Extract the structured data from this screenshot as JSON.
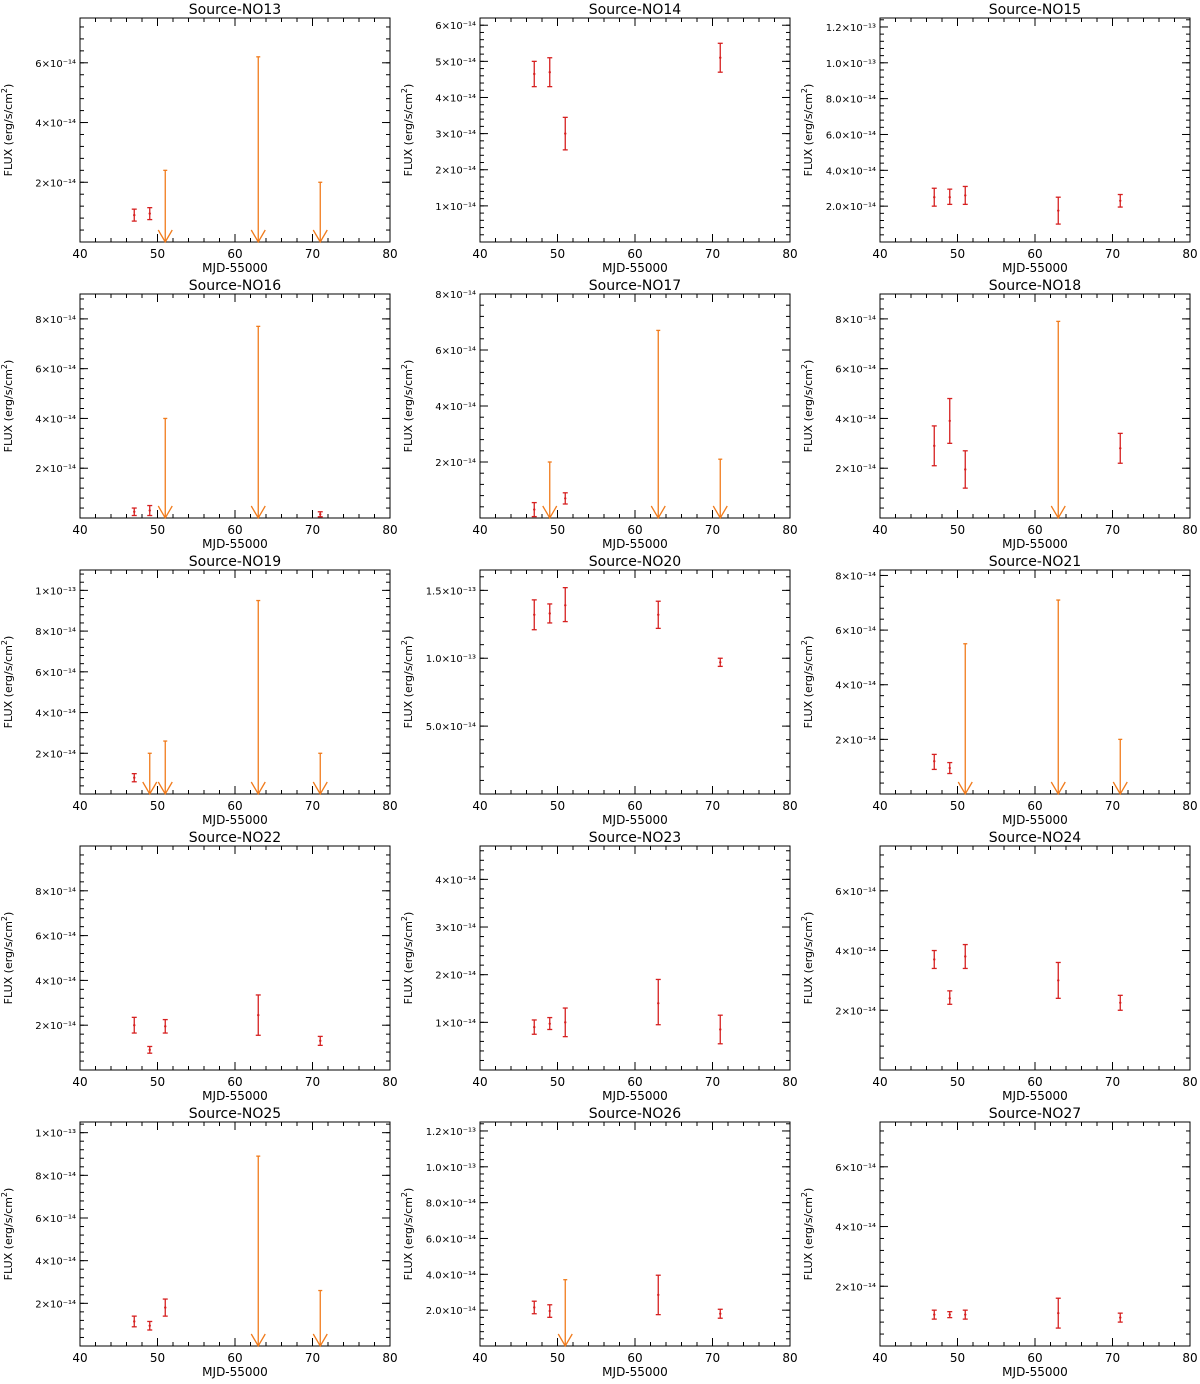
{
  "colors": {
    "detection": "#d62020",
    "upper_limit": "#f07b1c",
    "axes": "#000000"
  },
  "chart_data": [
    {
      "type": "scatter",
      "title": "Source-NO13",
      "xlabel": "MJD-55000",
      "ylabel": "FLUX (erg/s/cm",
      "xlim": [
        40,
        80
      ],
      "ylim": [
        0,
        7.5e-14
      ],
      "xticks": [
        40,
        50,
        60,
        70,
        80
      ],
      "yticks": [
        2e-14,
        4e-14,
        6e-14
      ],
      "ytick_labels": [
        "2×10⁻¹⁴",
        "4×10⁻¹⁴",
        "6×10⁻¹⁴"
      ],
      "detections": [
        {
          "x": 47,
          "y": 9e-15,
          "ylo": 7e-15,
          "yhi": 1.1e-14
        },
        {
          "x": 49,
          "y": 9.5e-15,
          "ylo": 7.5e-15,
          "yhi": 1.15e-14
        }
      ],
      "upper_limits": [
        {
          "x": 51,
          "y": 2.4e-14
        },
        {
          "x": 63,
          "y": 6.2e-14
        },
        {
          "x": 71,
          "y": 2e-14
        }
      ]
    },
    {
      "type": "scatter",
      "title": "Source-NO14",
      "xlabel": "MJD-55000",
      "ylabel": "FLUX (erg/s/cm",
      "xlim": [
        40,
        80
      ],
      "ylim": [
        0,
        6.2e-14
      ],
      "xticks": [
        40,
        50,
        60,
        70,
        80
      ],
      "yticks": [
        1e-14,
        2e-14,
        3e-14,
        4e-14,
        5e-14,
        6e-14
      ],
      "ytick_labels": [
        "1×10⁻¹⁴",
        "2×10⁻¹⁴",
        "3×10⁻¹⁴",
        "4×10⁻¹⁴",
        "5×10⁻¹⁴",
        "6×10⁻¹⁴"
      ],
      "detections": [
        {
          "x": 47,
          "y": 4.65e-14,
          "ylo": 4.3e-14,
          "yhi": 5e-14
        },
        {
          "x": 49,
          "y": 4.7e-14,
          "ylo": 4.3e-14,
          "yhi": 5.1e-14
        },
        {
          "x": 51,
          "y": 3e-14,
          "ylo": 2.55e-14,
          "yhi": 3.45e-14
        },
        {
          "x": 71,
          "y": 5.1e-14,
          "ylo": 4.7e-14,
          "yhi": 5.5e-14
        }
      ],
      "upper_limits": []
    },
    {
      "type": "scatter",
      "title": "Source-NO15",
      "xlabel": "MJD-55000",
      "ylabel": "FLUX (erg/s/cm",
      "xlim": [
        40,
        80
      ],
      "ylim": [
        0,
        1.25e-13
      ],
      "xticks": [
        40,
        50,
        60,
        70,
        80
      ],
      "yticks": [
        2e-14,
        4e-14,
        6e-14,
        8e-14,
        1e-13,
        1.2e-13
      ],
      "ytick_labels": [
        "2.0×10⁻¹⁴",
        "4.0×10⁻¹⁴",
        "6.0×10⁻¹⁴",
        "8.0×10⁻¹⁴",
        "1.0×10⁻¹³",
        "1.2×10⁻¹³"
      ],
      "detections": [
        {
          "x": 47,
          "y": 2.5e-14,
          "ylo": 2e-14,
          "yhi": 3e-14
        },
        {
          "x": 49,
          "y": 2.5e-14,
          "ylo": 2.1e-14,
          "yhi": 2.95e-14
        },
        {
          "x": 51,
          "y": 2.6e-14,
          "ylo": 2.1e-14,
          "yhi": 3.1e-14
        },
        {
          "x": 63,
          "y": 1.75e-14,
          "ylo": 1e-14,
          "yhi": 2.5e-14
        },
        {
          "x": 71,
          "y": 2.3e-14,
          "ylo": 1.95e-14,
          "yhi": 2.65e-14
        }
      ],
      "upper_limits": []
    },
    {
      "type": "scatter",
      "title": "Source-NO16",
      "xlabel": "MJD-55000",
      "ylabel": "FLUX (erg/s/cm",
      "xlim": [
        40,
        80
      ],
      "ylim": [
        0,
        9e-14
      ],
      "xticks": [
        40,
        50,
        60,
        70,
        80
      ],
      "yticks": [
        2e-14,
        4e-14,
        6e-14,
        8e-14
      ],
      "ytick_labels": [
        "2×10⁻¹⁴",
        "4×10⁻¹⁴",
        "6×10⁻¹⁴",
        "8×10⁻¹⁴"
      ],
      "detections": [
        {
          "x": 47,
          "y": 2.5e-15,
          "ylo": 1e-15,
          "yhi": 4e-15
        },
        {
          "x": 49,
          "y": 3e-15,
          "ylo": 1e-15,
          "yhi": 5e-15
        },
        {
          "x": 71,
          "y": 1.5e-15,
          "ylo": 5e-16,
          "yhi": 2.5e-15
        }
      ],
      "upper_limits": [
        {
          "x": 51,
          "y": 4e-14
        },
        {
          "x": 63,
          "y": 7.7e-14
        }
      ]
    },
    {
      "type": "scatter",
      "title": "Source-NO17",
      "xlabel": "MJD-55000",
      "ylabel": "FLUX (erg/s/cm",
      "xlim": [
        40,
        80
      ],
      "ylim": [
        0,
        8e-14
      ],
      "xticks": [
        40,
        50,
        60,
        70,
        80
      ],
      "yticks": [
        2e-14,
        4e-14,
        6e-14,
        8e-14
      ],
      "ytick_labels": [
        "2×10⁻¹⁴",
        "4×10⁻¹⁴",
        "6×10⁻¹⁴",
        "8×10⁻¹⁴"
      ],
      "detections": [
        {
          "x": 47,
          "y": 3e-15,
          "ylo": 5e-16,
          "yhi": 5.5e-15
        },
        {
          "x": 51,
          "y": 7e-15,
          "ylo": 5e-15,
          "yhi": 9e-15
        }
      ],
      "upper_limits": [
        {
          "x": 49,
          "y": 2e-14
        },
        {
          "x": 63,
          "y": 6.7e-14
        },
        {
          "x": 71,
          "y": 2.1e-14
        }
      ]
    },
    {
      "type": "scatter",
      "title": "Source-NO18",
      "xlabel": "MJD-55000",
      "ylabel": "FLUX (erg/s/cm",
      "xlim": [
        40,
        80
      ],
      "ylim": [
        0,
        9e-14
      ],
      "xticks": [
        40,
        50,
        60,
        70,
        80
      ],
      "yticks": [
        2e-14,
        4e-14,
        6e-14,
        8e-14
      ],
      "ytick_labels": [
        "2×10⁻¹⁴",
        "4×10⁻¹⁴",
        "6×10⁻¹⁴",
        "8×10⁻¹⁴"
      ],
      "detections": [
        {
          "x": 47,
          "y": 2.9e-14,
          "ylo": 2.1e-14,
          "yhi": 3.7e-14
        },
        {
          "x": 49,
          "y": 3.9e-14,
          "ylo": 3e-14,
          "yhi": 4.8e-14
        },
        {
          "x": 51,
          "y": 1.95e-14,
          "ylo": 1.2e-14,
          "yhi": 2.7e-14
        },
        {
          "x": 71,
          "y": 2.8e-14,
          "ylo": 2.2e-14,
          "yhi": 3.4e-14
        }
      ],
      "upper_limits": [
        {
          "x": 63,
          "y": 7.9e-14
        }
      ]
    },
    {
      "type": "scatter",
      "title": "Source-NO19",
      "xlabel": "MJD-55000",
      "ylabel": "FLUX (erg/s/cm",
      "xlim": [
        40,
        80
      ],
      "ylim": [
        0,
        1.1e-13
      ],
      "xticks": [
        40,
        50,
        60,
        70,
        80
      ],
      "yticks": [
        2e-14,
        4e-14,
        6e-14,
        8e-14,
        1e-13
      ],
      "ytick_labels": [
        "2×10⁻¹⁴",
        "4×10⁻¹⁴",
        "6×10⁻¹⁴",
        "8×10⁻¹⁴",
        "1×10⁻¹³"
      ],
      "detections": [
        {
          "x": 47,
          "y": 8e-15,
          "ylo": 6e-15,
          "yhi": 1e-14
        }
      ],
      "upper_limits": [
        {
          "x": 49,
          "y": 2e-14
        },
        {
          "x": 51,
          "y": 2.6e-14
        },
        {
          "x": 63,
          "y": 9.5e-14
        },
        {
          "x": 71,
          "y": 2e-14
        }
      ]
    },
    {
      "type": "scatter",
      "title": "Source-NO20",
      "xlabel": "MJD-55000",
      "ylabel": "FLUX (erg/s/cm",
      "xlim": [
        40,
        80
      ],
      "ylim": [
        0,
        1.65e-13
      ],
      "xticks": [
        40,
        50,
        60,
        70,
        80
      ],
      "yticks": [
        5e-14,
        1e-13,
        1.5e-13
      ],
      "ytick_labels": [
        "5.0×10⁻¹⁴",
        "1.0×10⁻¹³",
        "1.5×10⁻¹³"
      ],
      "detections": [
        {
          "x": 47,
          "y": 1.32e-13,
          "ylo": 1.21e-13,
          "yhi": 1.43e-13
        },
        {
          "x": 49,
          "y": 1.33e-13,
          "ylo": 1.26e-13,
          "yhi": 1.4e-13
        },
        {
          "x": 51,
          "y": 1.39e-13,
          "ylo": 1.27e-13,
          "yhi": 1.52e-13
        },
        {
          "x": 63,
          "y": 1.32e-13,
          "ylo": 1.22e-13,
          "yhi": 1.42e-13
        },
        {
          "x": 71,
          "y": 9.7e-14,
          "ylo": 9.4e-14,
          "yhi": 1e-13
        }
      ],
      "upper_limits": []
    },
    {
      "type": "scatter",
      "title": "Source-NO21",
      "xlabel": "MJD-55000",
      "ylabel": "FLUX (erg/s/cm",
      "xlim": [
        40,
        80
      ],
      "ylim": [
        0,
        8.2e-14
      ],
      "xticks": [
        40,
        50,
        60,
        70,
        80
      ],
      "yticks": [
        2e-14,
        4e-14,
        6e-14,
        8e-14
      ],
      "ytick_labels": [
        "2×10⁻¹⁴",
        "4×10⁻¹⁴",
        "6×10⁻¹⁴",
        "8×10⁻¹⁴"
      ],
      "detections": [
        {
          "x": 47,
          "y": 1.2e-14,
          "ylo": 9e-15,
          "yhi": 1.45e-14
        },
        {
          "x": 49,
          "y": 9.5e-15,
          "ylo": 7.5e-15,
          "yhi": 1.15e-14
        }
      ],
      "upper_limits": [
        {
          "x": 51,
          "y": 5.5e-14
        },
        {
          "x": 63,
          "y": 7.1e-14
        },
        {
          "x": 71,
          "y": 2e-14
        }
      ]
    },
    {
      "type": "scatter",
      "title": "Source-NO22",
      "xlabel": "MJD-55000",
      "ylabel": "FLUX (erg/s/cm",
      "xlim": [
        40,
        80
      ],
      "ylim": [
        0,
        1e-13
      ],
      "xticks": [
        40,
        50,
        60,
        70,
        80
      ],
      "yticks": [
        2e-14,
        4e-14,
        6e-14,
        8e-14
      ],
      "ytick_labels": [
        "2×10⁻¹⁴",
        "4×10⁻¹⁴",
        "6×10⁻¹⁴",
        "8×10⁻¹⁴"
      ],
      "detections": [
        {
          "x": 47,
          "y": 2e-14,
          "ylo": 1.65e-14,
          "yhi": 2.35e-14
        },
        {
          "x": 49,
          "y": 9e-15,
          "ylo": 7.5e-15,
          "yhi": 1.05e-14
        },
        {
          "x": 51,
          "y": 1.95e-14,
          "ylo": 1.65e-14,
          "yhi": 2.25e-14
        },
        {
          "x": 63,
          "y": 2.45e-14,
          "ylo": 1.55e-14,
          "yhi": 3.35e-14
        },
        {
          "x": 71,
          "y": 1.3e-14,
          "ylo": 1.1e-14,
          "yhi": 1.5e-14
        }
      ],
      "upper_limits": []
    },
    {
      "type": "scatter",
      "title": "Source-NO23",
      "xlabel": "MJD-55000",
      "ylabel": "FLUX (erg/s/cm",
      "xlim": [
        40,
        80
      ],
      "ylim": [
        0,
        4.7e-14
      ],
      "xticks": [
        40,
        50,
        60,
        70,
        80
      ],
      "yticks": [
        1e-14,
        2e-14,
        3e-14,
        4e-14
      ],
      "ytick_labels": [
        "1×10⁻¹⁴",
        "2×10⁻¹⁴",
        "3×10⁻¹⁴",
        "4×10⁻¹⁴"
      ],
      "detections": [
        {
          "x": 47,
          "y": 9e-15,
          "ylo": 7.5e-15,
          "yhi": 1.05e-14
        },
        {
          "x": 49,
          "y": 9.7e-15,
          "ylo": 8.5e-15,
          "yhi": 1.1e-14
        },
        {
          "x": 51,
          "y": 1e-14,
          "ylo": 7e-15,
          "yhi": 1.3e-14
        },
        {
          "x": 63,
          "y": 1.4e-14,
          "ylo": 9.5e-15,
          "yhi": 1.9e-14
        },
        {
          "x": 71,
          "y": 8.5e-15,
          "ylo": 5.5e-15,
          "yhi": 1.15e-14
        }
      ],
      "upper_limits": []
    },
    {
      "type": "scatter",
      "title": "Source-NO24",
      "xlabel": "MJD-55000",
      "ylabel": "FLUX (erg/s/cm",
      "xlim": [
        40,
        80
      ],
      "ylim": [
        0,
        7.5e-14
      ],
      "xticks": [
        40,
        50,
        60,
        70,
        80
      ],
      "yticks": [
        2e-14,
        4e-14,
        6e-14
      ],
      "ytick_labels": [
        "2×10⁻¹⁴",
        "4×10⁻¹⁴",
        "6×10⁻¹⁴"
      ],
      "detections": [
        {
          "x": 47,
          "y": 3.7e-14,
          "ylo": 3.4e-14,
          "yhi": 4e-14
        },
        {
          "x": 49,
          "y": 2.4e-14,
          "ylo": 2.2e-14,
          "yhi": 2.65e-14
        },
        {
          "x": 51,
          "y": 3.8e-14,
          "ylo": 3.4e-14,
          "yhi": 4.2e-14
        },
        {
          "x": 63,
          "y": 3e-14,
          "ylo": 2.4e-14,
          "yhi": 3.6e-14
        },
        {
          "x": 71,
          "y": 2.25e-14,
          "ylo": 2e-14,
          "yhi": 2.5e-14
        }
      ],
      "upper_limits": []
    },
    {
      "type": "scatter",
      "title": "Source-NO25",
      "xlabel": "MJD-55000",
      "ylabel": "FLUX (erg/s/cm",
      "xlim": [
        40,
        80
      ],
      "ylim": [
        0,
        1.05e-13
      ],
      "xticks": [
        40,
        50,
        60,
        70,
        80
      ],
      "yticks": [
        2e-14,
        4e-14,
        6e-14,
        8e-14,
        1e-13
      ],
      "ytick_labels": [
        "2×10⁻¹⁴",
        "4×10⁻¹⁴",
        "6×10⁻¹⁴",
        "8×10⁻¹⁴",
        "1×10⁻¹³"
      ],
      "detections": [
        {
          "x": 47,
          "y": 1.15e-14,
          "ylo": 9e-15,
          "yhi": 1.4e-14
        },
        {
          "x": 49,
          "y": 9.5e-15,
          "ylo": 7.5e-15,
          "yhi": 1.15e-14
        },
        {
          "x": 51,
          "y": 1.8e-14,
          "ylo": 1.4e-14,
          "yhi": 2.2e-14
        }
      ],
      "upper_limits": [
        {
          "x": 63,
          "y": 8.9e-14
        },
        {
          "x": 71,
          "y": 2.6e-14
        }
      ]
    },
    {
      "type": "scatter",
      "title": "Source-NO26",
      "xlabel": "MJD-55000",
      "ylabel": "FLUX (erg/s/cm",
      "xlim": [
        40,
        80
      ],
      "ylim": [
        0,
        1.25e-13
      ],
      "xticks": [
        40,
        50,
        60,
        70,
        80
      ],
      "yticks": [
        2e-14,
        4e-14,
        6e-14,
        8e-14,
        1e-13,
        1.2e-13
      ],
      "ytick_labels": [
        "2.0×10⁻¹⁴",
        "4.0×10⁻¹⁴",
        "6.0×10⁻¹⁴",
        "8.0×10⁻¹⁴",
        "1.0×10⁻¹³",
        "1.2×10⁻¹³"
      ],
      "detections": [
        {
          "x": 47,
          "y": 2.15e-14,
          "ylo": 1.8e-14,
          "yhi": 2.5e-14
        },
        {
          "x": 49,
          "y": 1.95e-14,
          "ylo": 1.6e-14,
          "yhi": 2.3e-14
        },
        {
          "x": 63,
          "y": 2.85e-14,
          "ylo": 1.75e-14,
          "yhi": 3.95e-14
        },
        {
          "x": 71,
          "y": 1.8e-14,
          "ylo": 1.55e-14,
          "yhi": 2.05e-14
        }
      ],
      "upper_limits": [
        {
          "x": 51,
          "y": 3.7e-14
        }
      ]
    },
    {
      "type": "scatter",
      "title": "Source-NO27",
      "xlabel": "MJD-55000",
      "ylabel": "FLUX (erg/s/cm",
      "xlim": [
        40,
        80
      ],
      "ylim": [
        0,
        7.5e-14
      ],
      "xticks": [
        40,
        50,
        60,
        70,
        80
      ],
      "yticks": [
        2e-14,
        4e-14,
        6e-14
      ],
      "ytick_labels": [
        "2×10⁻¹⁴",
        "4×10⁻¹⁴",
        "6×10⁻¹⁴"
      ],
      "detections": [
        {
          "x": 47,
          "y": 1.05e-14,
          "ylo": 9e-15,
          "yhi": 1.2e-14
        },
        {
          "x": 49,
          "y": 1.05e-14,
          "ylo": 9.5e-15,
          "yhi": 1.15e-14
        },
        {
          "x": 51,
          "y": 1.05e-14,
          "ylo": 9e-15,
          "yhi": 1.2e-14
        },
        {
          "x": 63,
          "y": 1.1e-14,
          "ylo": 6e-15,
          "yhi": 1.6e-14
        },
        {
          "x": 71,
          "y": 9.5e-15,
          "ylo": 8e-15,
          "yhi": 1.1e-14
        }
      ],
      "upper_limits": []
    }
  ]
}
